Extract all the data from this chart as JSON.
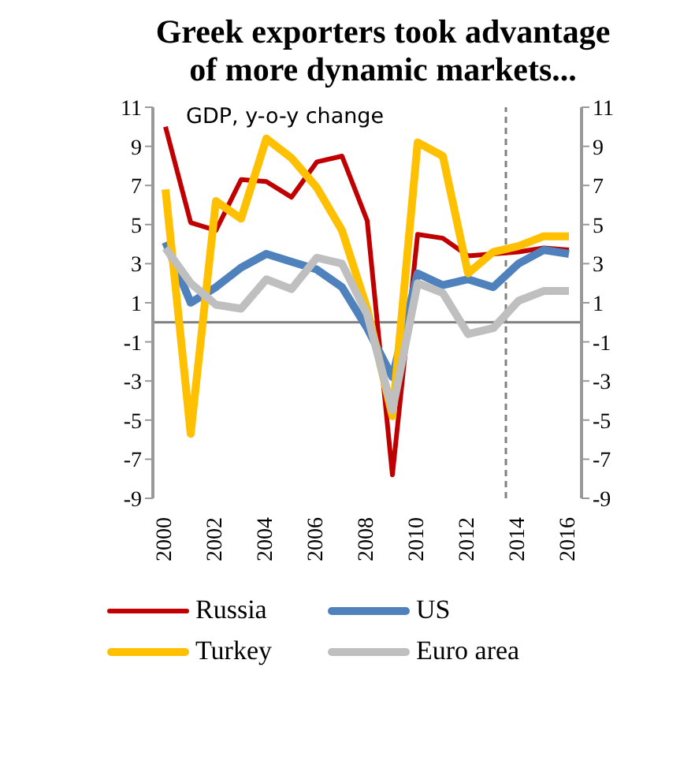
{
  "chart_data": {
    "type": "line",
    "title": "Greek  exporters  took advantage of  more dynamic markets...",
    "annotations": [
      "GDP, y-o-y change"
    ],
    "x": [
      2000,
      2001,
      2002,
      2003,
      2004,
      2005,
      2006,
      2007,
      2008,
      2009,
      2010,
      2011,
      2012,
      2013,
      2014,
      2015,
      2016
    ],
    "series": [
      {
        "name": "Russia",
        "color": "#c00000",
        "values": [
          10,
          5.1,
          4.7,
          7.3,
          7.2,
          6.4,
          8.2,
          8.5,
          5.2,
          -7.8,
          4.5,
          4.3,
          3.4,
          3.5,
          3.6,
          3.8,
          3.7
        ]
      },
      {
        "name": "US",
        "color": "#4f81bd",
        "values": [
          4.1,
          1.0,
          1.8,
          2.8,
          3.5,
          3.1,
          2.7,
          1.8,
          -0.3,
          -2.8,
          2.5,
          1.9,
          2.2,
          1.8,
          3.0,
          3.7,
          3.5
        ]
      },
      {
        "name": "Turkey",
        "color": "#ffc000",
        "values": [
          6.8,
          -5.7,
          6.2,
          5.3,
          9.4,
          8.4,
          6.9,
          4.7,
          0.7,
          -4.8,
          9.2,
          8.5,
          2.5,
          3.6,
          3.9,
          4.4,
          4.4
        ]
      },
      {
        "name": "Euro area",
        "color": "#bfbfbf",
        "values": [
          3.8,
          2.0,
          0.9,
          0.7,
          2.2,
          1.7,
          3.3,
          3.0,
          0.4,
          -4.5,
          2.0,
          1.5,
          -0.6,
          -0.3,
          1.1,
          1.6,
          1.6
        ]
      }
    ],
    "xlim": [
      1999.5,
      2016.5
    ],
    "xticks": [
      2000,
      2002,
      2004,
      2006,
      2008,
      2010,
      2012,
      2014,
      2016
    ],
    "ylim": [
      -9,
      11
    ],
    "yticks": [
      -9,
      -7,
      -5,
      -3,
      -1,
      1,
      3,
      5,
      7,
      9,
      11
    ],
    "y2lim": [
      -9,
      11
    ],
    "y2ticks": [
      -9,
      -7,
      -5,
      -3,
      -1,
      1,
      3,
      5,
      7,
      9,
      11
    ],
    "ref_lines": [
      {
        "axis": "y",
        "value": 0,
        "color": "#808080",
        "line_style": "solid"
      },
      {
        "axis": "x",
        "value": 2013.5,
        "color": "#808080",
        "line_style": "dashed"
      }
    ],
    "grid": false,
    "legend": "bottom",
    "marker": "none",
    "line_style": "solid"
  }
}
